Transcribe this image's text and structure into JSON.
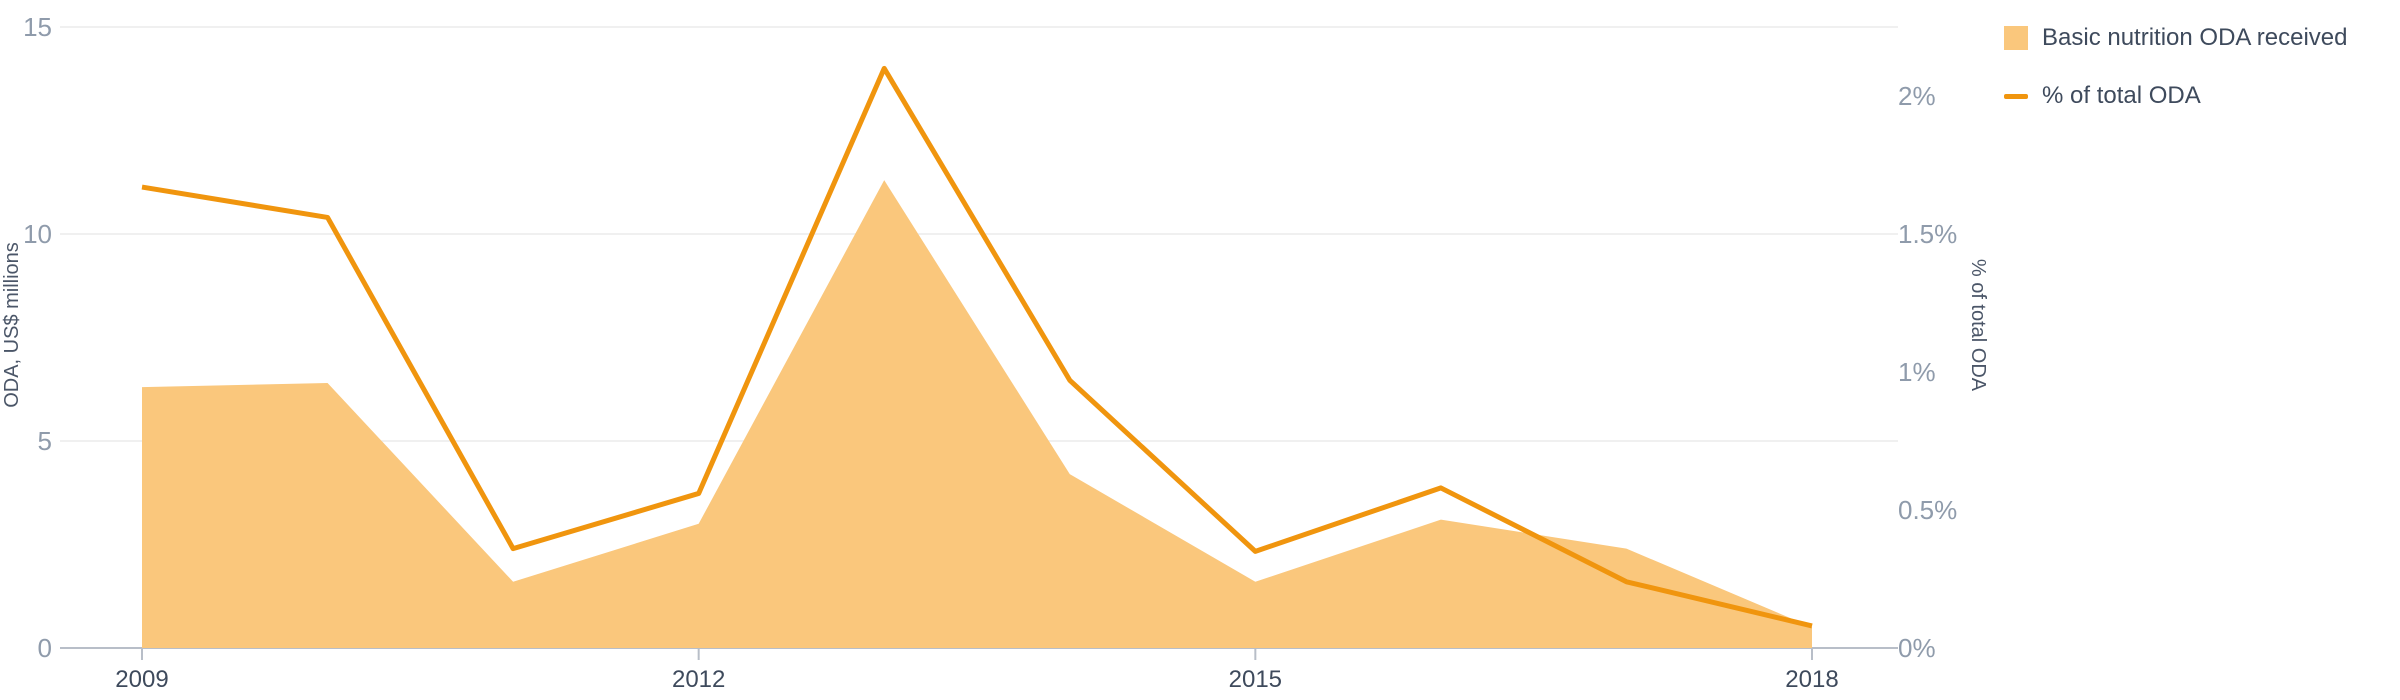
{
  "colors": {
    "area": "#fac77c",
    "line": "#f0950e"
  },
  "legend": {
    "items": [
      {
        "label": "Basic nutrition ODA received",
        "kind": "area"
      },
      {
        "label": "% of total ODA",
        "kind": "line"
      }
    ]
  },
  "chart_data": {
    "type": "area",
    "x": [
      2009,
      2010,
      2011,
      2012,
      2013,
      2014,
      2015,
      2016,
      2017,
      2018
    ],
    "x_tick_labels": [
      "2009",
      "2012",
      "2015",
      "2018"
    ],
    "x_ticks": [
      2009,
      2012,
      2015,
      2018
    ],
    "series": [
      {
        "name": "Basic nutrition ODA received",
        "axis": "left",
        "type": "area",
        "values": [
          6.3,
          6.4,
          1.6,
          3.0,
          11.3,
          4.2,
          1.6,
          3.1,
          2.4,
          0.5
        ]
      },
      {
        "name": "% of total ODA",
        "axis": "right",
        "type": "line",
        "values": [
          1.67,
          1.56,
          0.36,
          0.56,
          2.1,
          0.97,
          0.35,
          0.58,
          0.24,
          0.08
        ]
      }
    ],
    "y_left": {
      "label": "ODA, US$ millions",
      "ticks": [
        0,
        5,
        10,
        15
      ],
      "tick_labels": [
        "0",
        "5",
        "10",
        "15"
      ],
      "lim": [
        0,
        15
      ]
    },
    "y_right": {
      "label": "% of total ODA",
      "ticks": [
        0,
        0.5,
        1,
        1.5,
        2
      ],
      "tick_labels": [
        "0%",
        "0.5%",
        "1%",
        "1.5%",
        "2%"
      ],
      "lim": [
        0,
        2.25
      ]
    },
    "grid": true,
    "legend_position": "top-right"
  }
}
